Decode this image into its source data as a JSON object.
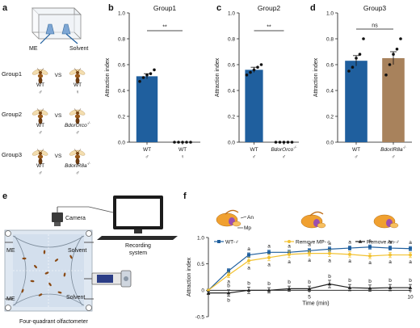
{
  "colors": {
    "blue": "#1f5f9e",
    "brown": "#a8825c",
    "yellow": "#f2c232",
    "black": "#222222",
    "wasp_body": "#9a5a1a",
    "wasp_wing": "#f0d49a"
  },
  "panel_a": {
    "label": "a",
    "me": "ME",
    "solvent": "Solvent",
    "groups": [
      {
        "name": "Group1",
        "left": "WT",
        "left_sex": "♂",
        "vs": "VS",
        "right": "WT",
        "right_sex": "♀"
      },
      {
        "name": "Group2",
        "left": "WT",
        "left_sex": "♂",
        "vs": "VS",
        "right": "BdorOrco",
        "right_sup": "-/-",
        "right_sex": "♂"
      },
      {
        "name": "Group3",
        "left": "WT",
        "left_sex": "♂",
        "vs": "VS",
        "right": "BdorIR8a",
        "right_sup": "-/-",
        "right_sex": "♂"
      }
    ]
  },
  "panel_e": {
    "label": "e",
    "camera": "Camera",
    "recording": [
      "Recording",
      "system"
    ],
    "me_top": "ME",
    "solvent_top": "Solvent",
    "me_bottom": "ME",
    "solvent_bottom": "Solvent",
    "caption": "Four-quadrant olfactometer"
  },
  "chart_data": [
    {
      "panel": "b",
      "type": "bar",
      "title": "Group1",
      "ylabel": "Attraction index",
      "ylim": [
        0,
        1.0
      ],
      "yticks": [
        0,
        0.2,
        0.4,
        0.6,
        0.8,
        1.0
      ],
      "ytick_labels": [
        "0.0",
        "0.2",
        "0.4",
        "0.6",
        "0.8",
        "1.0"
      ],
      "categories": [
        {
          "label": "WT",
          "sex": "♂",
          "italic": false
        },
        {
          "label": "WT",
          "sex": "♀",
          "italic": false
        }
      ],
      "values": [
        0.51,
        0.0
      ],
      "errors": [
        0.02,
        0.0
      ],
      "points": [
        [
          0.47,
          0.5,
          0.52,
          0.53,
          0.56
        ],
        [
          0,
          0,
          0,
          0,
          0
        ]
      ],
      "bar_colors": [
        "#1f5f9e",
        "#1f5f9e"
      ],
      "significance": "**"
    },
    {
      "panel": "c",
      "type": "bar",
      "title": "Group2",
      "ylabel": "Attraction index",
      "ylim": [
        0,
        1.0
      ],
      "yticks": [
        0,
        0.2,
        0.4,
        0.6,
        0.8,
        1.0
      ],
      "ytick_labels": [
        "0.0",
        "0.2",
        "0.4",
        "0.6",
        "0.8",
        "1.0"
      ],
      "categories": [
        {
          "label": "WT",
          "sex": "♂",
          "italic": false
        },
        {
          "label": "BdorOrco",
          "sup": "-/-",
          "sex": "♂",
          "italic": true
        }
      ],
      "values": [
        0.56,
        0.0
      ],
      "errors": [
        0.02,
        0.0
      ],
      "points": [
        [
          0.52,
          0.54,
          0.56,
          0.58,
          0.6
        ],
        [
          0,
          0,
          0,
          0,
          0
        ]
      ],
      "bar_colors": [
        "#1f5f9e",
        "#1f5f9e"
      ],
      "significance": "**"
    },
    {
      "panel": "d",
      "type": "bar",
      "title": "Group3",
      "ylabel": "Attraction index",
      "ylim": [
        0,
        1.0
      ],
      "yticks": [
        0,
        0.2,
        0.4,
        0.6,
        0.8,
        1.0
      ],
      "ytick_labels": [
        "0.0",
        "0.2",
        "0.4",
        "0.6",
        "0.8",
        "1.0"
      ],
      "categories": [
        {
          "label": "WT",
          "sex": "♂",
          "italic": false
        },
        {
          "label": "BdorIR8a",
          "sup": "-/-",
          "sex": "♂",
          "italic": true
        }
      ],
      "values": [
        0.63,
        0.65
      ],
      "errors": [
        0.04,
        0.05
      ],
      "points": [
        [
          0.55,
          0.58,
          0.65,
          0.68,
          0.8
        ],
        [
          0.52,
          0.6,
          0.68,
          0.72,
          0.8
        ]
      ],
      "bar_colors": [
        "#1f5f9e",
        "#a8825c"
      ],
      "significance": "ns"
    },
    {
      "panel": "f",
      "type": "line",
      "xlabel": "Time (min)",
      "ylabel": "Attraction index",
      "xlim": [
        0,
        10
      ],
      "ylim": [
        -0.5,
        1.0
      ],
      "xticks": [
        5,
        10
      ],
      "xtick_labels": [
        "5",
        "10"
      ],
      "yticks": [
        -0.5,
        0,
        0.5,
        1.0
      ],
      "ytick_labels": [
        "-0.5",
        "0",
        "0.5",
        "1.0"
      ],
      "x": [
        0,
        1,
        2,
        3,
        4,
        5,
        6,
        7,
        8,
        9,
        10
      ],
      "series": [
        {
          "name": "WT-♂",
          "color": "#1f5f9e",
          "marker": "square",
          "values": [
            0.0,
            0.37,
            0.67,
            0.72,
            0.72,
            0.75,
            0.78,
            0.8,
            0.82,
            0.8,
            0.79
          ],
          "errors": [
            0,
            0.04,
            0.04,
            0.04,
            0.04,
            0.04,
            0.04,
            0.04,
            0.04,
            0.04,
            0.04
          ],
          "letters": [
            "",
            "",
            "a",
            "a",
            "a",
            "a",
            "a",
            "a",
            "a",
            "a",
            "a"
          ]
        },
        {
          "name": "Remove MP-♂",
          "color": "#f2c232",
          "marker": "circle",
          "values": [
            0.0,
            0.29,
            0.56,
            0.62,
            0.68,
            0.7,
            0.7,
            0.68,
            0.65,
            0.67,
            0.67
          ],
          "errors": [
            0,
            0.05,
            0.06,
            0.06,
            0.06,
            0.05,
            0.06,
            0.05,
            0.05,
            0.05,
            0.05
          ],
          "letters": [
            "",
            "a",
            "a",
            "a",
            "a",
            "a",
            "a",
            "a",
            "a",
            "a",
            "a"
          ]
        },
        {
          "name": "Remove An-♂",
          "color": "#222222",
          "marker": "triangle",
          "values": [
            -0.05,
            -0.05,
            0.0,
            0.0,
            0.03,
            0.03,
            0.12,
            0.05,
            0.04,
            0.05,
            0.05
          ],
          "errors": [
            0.03,
            0.06,
            0.06,
            0.05,
            0.05,
            0.05,
            0.07,
            0.06,
            0.06,
            0.06,
            0.06
          ],
          "letters_top": [
            "",
            "b",
            "b",
            "b",
            "b",
            "b",
            "b",
            "b",
            "b",
            "b",
            "b"
          ],
          "letters_bottom": [
            "",
            "b",
            "",
            "",
            "",
            "",
            "",
            "",
            "",
            "",
            ""
          ]
        }
      ],
      "wasp_labels": [
        "An",
        "Mp"
      ]
    }
  ]
}
